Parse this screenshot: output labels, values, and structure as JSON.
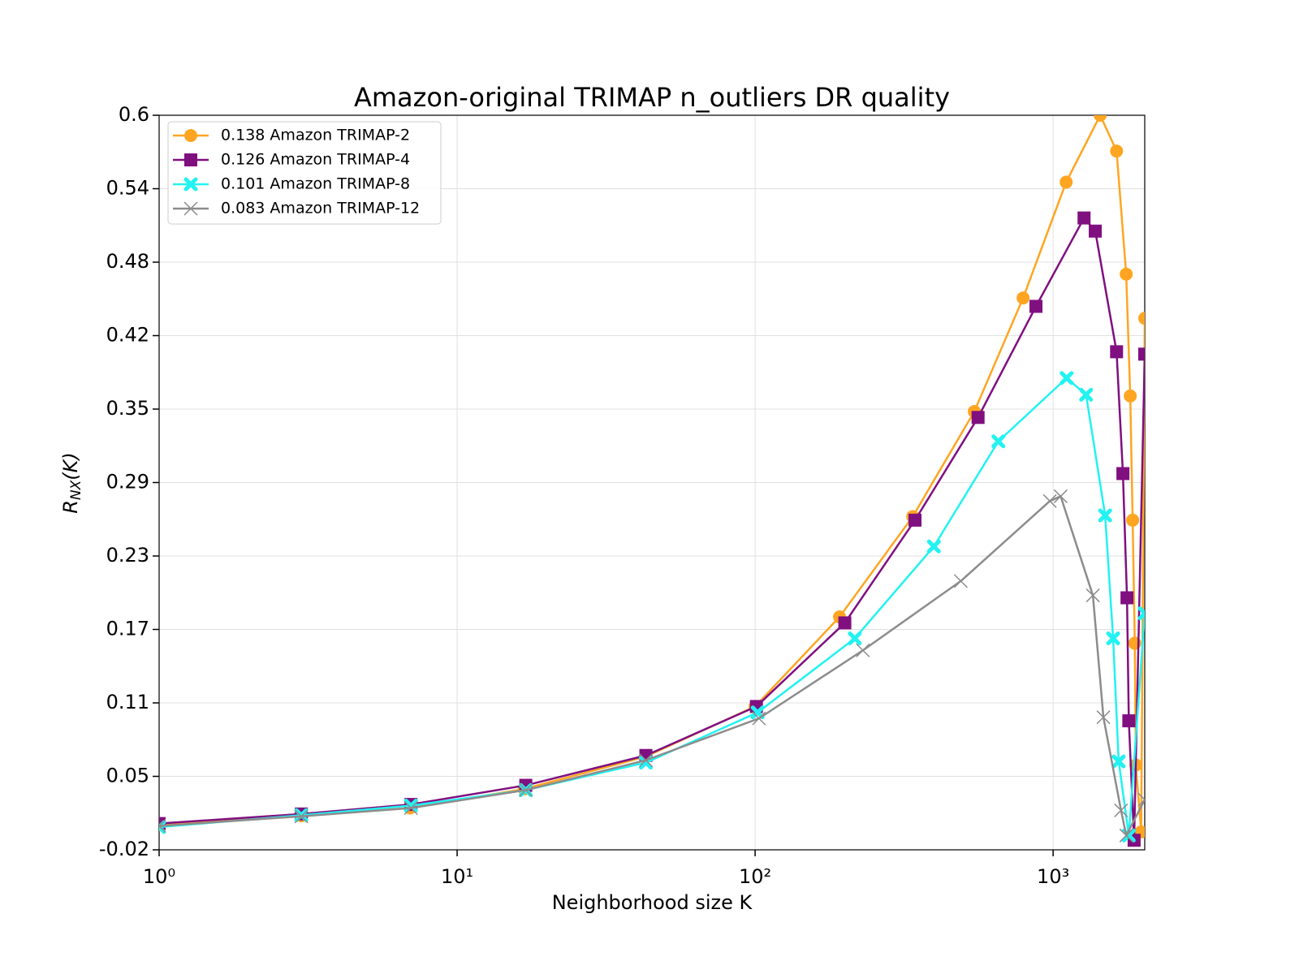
{
  "chart_data": {
    "type": "line",
    "title": "Amazon-original TRIMAP n_outliers DR quality",
    "xlabel": "Neighborhood size K",
    "ylabel": {
      "main": "R",
      "sub": "NX",
      "rest": "(K)"
    },
    "xscale": "log",
    "grid": true,
    "legend": "upper left",
    "xlim": [
      1,
      2030
    ],
    "ylim": [
      -0.015,
      0.6
    ],
    "xticks": [
      {
        "value": 1,
        "label": "10⁰"
      },
      {
        "value": 10,
        "label": "10¹"
      },
      {
        "value": 100,
        "label": "10²"
      },
      {
        "value": 1000,
        "label": "10³"
      }
    ],
    "yticks": [
      {
        "value": -0.015,
        "label": "-0.02"
      },
      {
        "value": 0.0465,
        "label": "0.05"
      },
      {
        "value": 0.108,
        "label": "0.11"
      },
      {
        "value": 0.1695,
        "label": "0.17"
      },
      {
        "value": 0.231,
        "label": "0.23"
      },
      {
        "value": 0.2925,
        "label": "0.29"
      },
      {
        "value": 0.354,
        "label": "0.35"
      },
      {
        "value": 0.4155,
        "label": "0.42"
      },
      {
        "value": 0.477,
        "label": "0.48"
      },
      {
        "value": 0.5385,
        "label": "0.54"
      },
      0.6
    ],
    "series": [
      {
        "name": "0.138 Amazon TRIMAP-2",
        "color": "#ffa521",
        "marker": "circle",
        "x": [
          1,
          3,
          6.95,
          16.8,
          42.9,
          100,
          192,
          338,
          544,
          793,
          1106,
          1439,
          1633,
          1759,
          1815,
          1849,
          1880,
          1895,
          1975,
          2030
        ],
        "values": [
          0.006,
          0.0135,
          0.02,
          0.036,
          0.063,
          0.105,
          0.18,
          0.264,
          0.352,
          0.447,
          0.544,
          0.6,
          0.57,
          0.467,
          0.365,
          0.261,
          0.158,
          0.056,
          0.0,
          0.43
        ]
      },
      {
        "name": "0.126 Amazon TRIMAP-4",
        "color": "#800f80",
        "marker": "square",
        "x": [
          1,
          3,
          7,
          17,
          43,
          101,
          200,
          344,
          560,
          876,
          1270,
          1385,
          1633,
          1715,
          1770,
          1795,
          1870,
          2030
        ],
        "values": [
          0.007,
          0.015,
          0.023,
          0.039,
          0.064,
          0.105,
          0.175,
          0.261,
          0.347,
          0.44,
          0.514,
          0.503,
          0.402,
          0.3,
          0.196,
          0.093,
          -0.007,
          0.4
        ]
      },
      {
        "name": "0.101 Amazon TRIMAP-8",
        "color": "#22f2f2",
        "marker": "xfilled",
        "x": [
          1,
          3,
          7,
          17,
          43,
          102,
          216,
          398,
          655,
          1110,
          1290,
          1495,
          1590,
          1660,
          1795,
          2030
        ],
        "values": [
          0.004,
          0.014,
          0.022,
          0.035,
          0.058,
          0.1,
          0.162,
          0.239,
          0.327,
          0.38,
          0.366,
          0.265,
          0.162,
          0.059,
          -0.003,
          0.183
        ]
      },
      {
        "name": "0.083 Amazon TRIMAP-12",
        "color": "#8c8c8c",
        "marker": "x",
        "x": [
          1,
          3,
          7,
          17,
          43,
          103,
          230,
          490,
          975,
          1060,
          1360,
          1475,
          1690,
          1760,
          2030
        ],
        "values": [
          0.005,
          0.013,
          0.02,
          0.035,
          0.06,
          0.095,
          0.152,
          0.21,
          0.277,
          0.281,
          0.198,
          0.096,
          0.018,
          -0.003,
          0.027
        ]
      }
    ]
  }
}
